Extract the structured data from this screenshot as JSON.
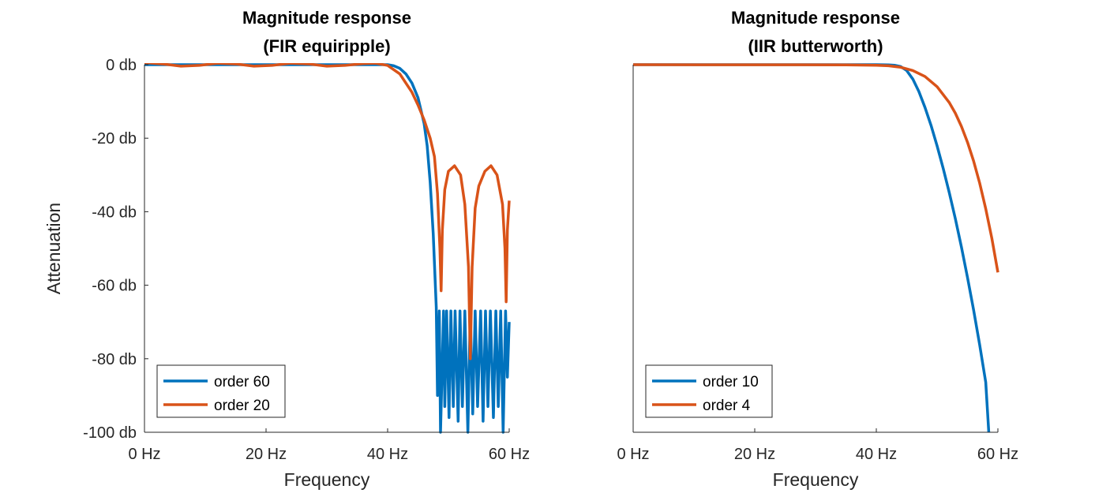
{
  "chart_data": [
    {
      "type": "line",
      "title": [
        "Magnitude response",
        "(FIR equiripple)"
      ],
      "xlabel": "Frequency",
      "ylabel": "Attenuation",
      "xlim": [
        0,
        60
      ],
      "ylim": [
        -100,
        0
      ],
      "xticks": [
        0,
        20,
        40,
        60
      ],
      "xtick_labels": [
        "0 Hz",
        "20 Hz",
        "40 Hz",
        "60 Hz"
      ],
      "yticks": [
        0,
        -20,
        -40,
        -60,
        -80,
        -100
      ],
      "ytick_labels": [
        "0 db",
        "-20 db",
        "-40 db",
        "-60 db",
        "-80 db",
        "-100 db"
      ],
      "grid": false,
      "legend_position": "bottom-left",
      "series": [
        {
          "name": "order 60",
          "color": "#0072BD",
          "x": [
            0,
            40,
            41,
            42,
            43,
            44,
            45,
            46,
            46.5,
            47,
            47.5,
            48,
            48.2,
            48.5,
            48.7,
            49.2,
            49.4,
            49.7,
            50.1,
            50.4,
            50.8,
            51.1,
            51.6,
            51.9,
            52.3,
            52.7,
            53.2,
            53.6,
            54.0,
            54.4,
            54.8,
            55.3,
            55.7,
            56.1,
            56.5,
            56.9,
            57.4,
            57.8,
            58.2,
            58.6,
            59.0,
            59.4,
            59.7,
            60
          ],
          "y": [
            0,
            0,
            -0.3,
            -1,
            -2.5,
            -5,
            -9,
            -16,
            -22,
            -32,
            -46,
            -66,
            -90,
            -67,
            -100,
            -67,
            -93,
            -67,
            -96,
            -67,
            -93,
            -67,
            -97,
            -67,
            -93,
            -67,
            -100,
            -67,
            -95,
            -67,
            -93,
            -67,
            -97,
            -67,
            -93,
            -67,
            -96,
            -67,
            -93,
            -67,
            -100,
            -67,
            -85,
            -70
          ]
        },
        {
          "name": "order 20",
          "color": "#D95319",
          "x": [
            0,
            3,
            6,
            9,
            12,
            15,
            18,
            21,
            24,
            27,
            30,
            33,
            36,
            38,
            40,
            42,
            44,
            45,
            46,
            47,
            47.7,
            48.2,
            48.6,
            48.8,
            49.0,
            49.4,
            50.0,
            51.0,
            52.0,
            52.7,
            53.3,
            53.6,
            53.9,
            54.4,
            55.0,
            56.0,
            57.0,
            58.0,
            58.9,
            59.3,
            59.5,
            59.7,
            60
          ],
          "y": [
            0.6,
            0.2,
            -0.4,
            -0.2,
            0.4,
            0.2,
            -0.4,
            -0.2,
            0.4,
            0.2,
            -0.4,
            -0.2,
            0.3,
            0.4,
            -0.2,
            -2.5,
            -7.5,
            -11,
            -15,
            -20,
            -25,
            -35,
            -50,
            -61.5,
            -45,
            -34,
            -29,
            -27.5,
            -30,
            -38,
            -55,
            -80,
            -55,
            -39,
            -33,
            -29,
            -27.5,
            -30,
            -38,
            -50,
            -64.5,
            -45,
            -37
          ]
        }
      ]
    },
    {
      "type": "line",
      "title": [
        "Magnitude response",
        "(IIR butterworth)"
      ],
      "xlabel": "Frequency",
      "ylabel": "",
      "xlim": [
        0,
        60
      ],
      "ylim": [
        -100,
        0
      ],
      "xticks": [
        0,
        20,
        40,
        60
      ],
      "xtick_labels": [
        "0 Hz",
        "20 Hz",
        "40 Hz",
        "60 Hz"
      ],
      "yticks": [],
      "ytick_labels": [],
      "grid": false,
      "legend_position": "bottom-left",
      "series": [
        {
          "name": "order 10",
          "color": "#0072BD",
          "x": [
            0,
            40,
            42,
            43,
            44,
            45,
            46,
            47,
            48,
            49,
            50,
            51,
            52,
            53,
            54,
            55,
            56,
            57,
            58,
            58.5
          ],
          "y": [
            0,
            0,
            -0.05,
            -0.15,
            -0.5,
            -1.6,
            -3.9,
            -7.3,
            -11.6,
            -16.5,
            -22.1,
            -28.2,
            -34.8,
            -41.9,
            -49.6,
            -57.9,
            -66.7,
            -76.2,
            -86.4,
            -100
          ]
        },
        {
          "name": "order 4",
          "color": "#D95319",
          "x": [
            0,
            35,
            40,
            42,
            44,
            46,
            48,
            50,
            52,
            53,
            54,
            55,
            56,
            57,
            58,
            59,
            60
          ],
          "y": [
            0,
            -0.05,
            -0.15,
            -0.3,
            -0.7,
            -1.6,
            -3.2,
            -6.0,
            -10.3,
            -13.2,
            -16.8,
            -21.1,
            -26.2,
            -32.2,
            -39.2,
            -47.2,
            -56.5
          ]
        }
      ]
    }
  ]
}
